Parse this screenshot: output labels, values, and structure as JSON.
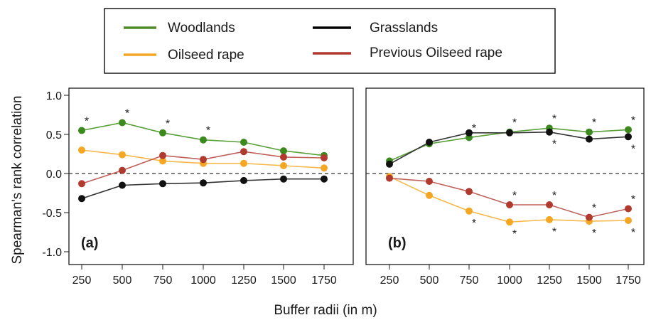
{
  "figure": {
    "ylabel": "Spearman's rank correlation",
    "xlabel": "Buffer radii (in m)"
  },
  "legend": {
    "items": [
      {
        "label": "Woodlands",
        "color": "#4e8a2a"
      },
      {
        "label": "Grasslands",
        "color": "#000000"
      },
      {
        "label": "Oilseed rape",
        "color": "#f5a623"
      },
      {
        "label": "Previous Oilseed rape",
        "color": "#b03a2e"
      }
    ]
  },
  "chart_data": [
    {
      "type": "line",
      "panel_label": "(a)",
      "x": [
        250,
        500,
        750,
        1000,
        1250,
        1500,
        1750
      ],
      "xticks": [
        "250",
        "500",
        "750",
        "1000",
        "1250",
        "1500",
        "1750"
      ],
      "yticks": [
        "1.0",
        "0.5",
        "0.0",
        "-0.5",
        "-1.0"
      ],
      "ylim": [
        -1.1,
        1.1
      ],
      "series": [
        {
          "name": "Woodlands",
          "color": "#3c8a1e",
          "line_color": "#5aa03a",
          "values": [
            0.55,
            0.65,
            0.52,
            0.43,
            0.4,
            0.29,
            0.23
          ],
          "significant": [
            {
              "x": 250,
              "pos": "above"
            },
            {
              "x": 500,
              "pos": "above"
            },
            {
              "x": 750,
              "pos": "above"
            },
            {
              "x": 1000,
              "pos": "above"
            }
          ]
        },
        {
          "name": "Oilseed rape",
          "color": "#f5a623",
          "line_color": "#f7b84a",
          "values": [
            0.3,
            0.24,
            0.16,
            0.13,
            0.13,
            0.1,
            0.07
          ],
          "significant": []
        },
        {
          "name": "Previous Oilseed rape",
          "color": "#b03a2e",
          "line_color": "#c0605a",
          "values": [
            -0.13,
            0.04,
            0.23,
            0.18,
            0.28,
            0.21,
            0.2
          ],
          "significant": []
        },
        {
          "name": "Grasslands",
          "color": "#111111",
          "line_color": "#333333",
          "values": [
            -0.32,
            -0.15,
            -0.13,
            -0.12,
            -0.09,
            -0.07,
            -0.07
          ],
          "significant": []
        }
      ]
    },
    {
      "type": "line",
      "panel_label": "(b)",
      "x": [
        250,
        500,
        750,
        1000,
        1250,
        1500,
        1750
      ],
      "xticks": [
        "250",
        "500",
        "750",
        "1000",
        "1250",
        "1500",
        "1750"
      ],
      "yticks": [
        "1.0",
        "0.5",
        "0.0",
        "-0.5",
        "-1.0"
      ],
      "ylim": [
        -1.1,
        1.1
      ],
      "series": [
        {
          "name": "Woodlands",
          "color": "#3c8a1e",
          "line_color": "#5aa03a",
          "values": [
            0.16,
            0.38,
            0.46,
            0.53,
            0.58,
            0.53,
            0.56
          ],
          "significant": [
            {
              "x": 750,
              "pos": "above"
            },
            {
              "x": 1000,
              "pos": "above"
            },
            {
              "x": 1250,
              "pos": "above"
            },
            {
              "x": 1500,
              "pos": "above"
            },
            {
              "x": 1750,
              "pos": "above"
            }
          ]
        },
        {
          "name": "Grasslands",
          "color": "#111111",
          "line_color": "#333333",
          "values": [
            0.12,
            0.4,
            0.52,
            0.52,
            0.53,
            0.44,
            0.47
          ],
          "significant": [
            {
              "x": 1250,
              "pos": "below"
            },
            {
              "x": 1750,
              "pos": "below"
            }
          ]
        },
        {
          "name": "Oilseed rape",
          "color": "#f5a623",
          "line_color": "#f7b84a",
          "values": [
            -0.04,
            -0.28,
            -0.48,
            -0.62,
            -0.59,
            -0.61,
            -0.6
          ],
          "significant": [
            {
              "x": 750,
              "pos": "below"
            },
            {
              "x": 1000,
              "pos": "below"
            },
            {
              "x": 1250,
              "pos": "below"
            },
            {
              "x": 1500,
              "pos": "below"
            },
            {
              "x": 1750,
              "pos": "below"
            }
          ]
        },
        {
          "name": "Previous Oilseed rape",
          "color": "#b03a2e",
          "line_color": "#c0605a",
          "values": [
            -0.06,
            -0.1,
            -0.23,
            -0.4,
            -0.4,
            -0.56,
            -0.45
          ],
          "significant": [
            {
              "x": 1000,
              "pos": "above"
            },
            {
              "x": 1250,
              "pos": "above"
            },
            {
              "x": 1500,
              "pos": "above"
            },
            {
              "x": 1750,
              "pos": "above"
            }
          ]
        }
      ]
    }
  ]
}
